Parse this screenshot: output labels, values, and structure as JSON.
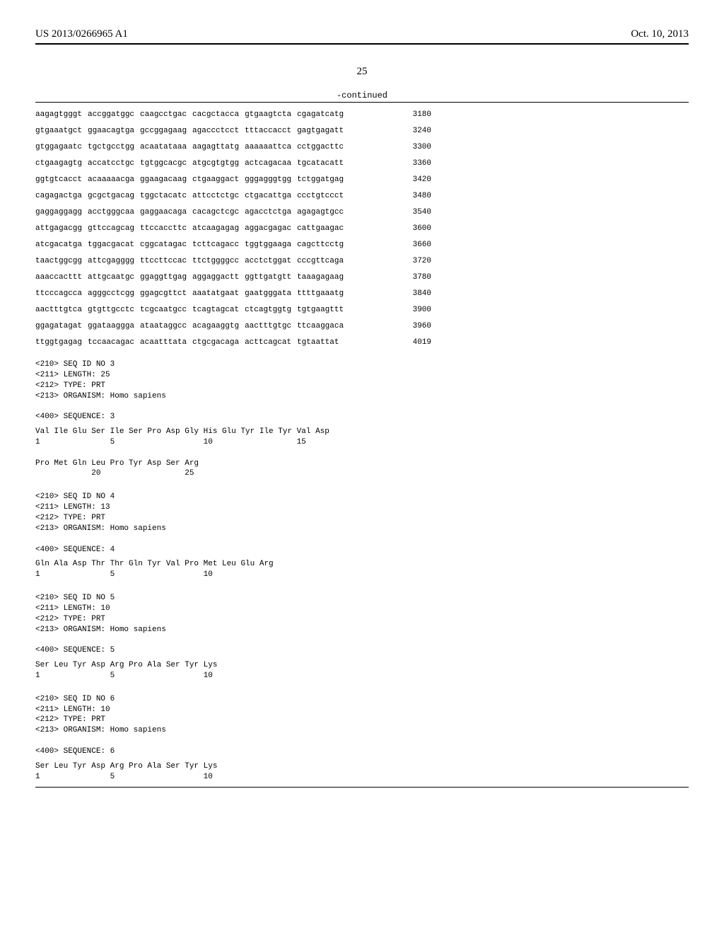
{
  "header": {
    "doc_number": "US 2013/0266965 A1",
    "date": "Oct. 10, 2013",
    "page_number": "25",
    "continued": "-continued"
  },
  "dna_rows": [
    {
      "groups": [
        "aagagtgggt",
        "accggatggc",
        "caagcctgac",
        "cacgctacca",
        "gtgaagtcta",
        "cgagatcatg"
      ],
      "pos": "3180"
    },
    {
      "groups": [
        "gtgaaatgct",
        "ggaacagtga",
        "gccggagaag",
        "agaccctcct",
        "tttaccacct",
        "gagtgagatt"
      ],
      "pos": "3240"
    },
    {
      "groups": [
        "gtggagaatc",
        "tgctgcctgg",
        "acaatataaa",
        "aagagttatg",
        "aaaaaattca",
        "cctggacttc"
      ],
      "pos": "3300"
    },
    {
      "groups": [
        "ctgaagagtg",
        "accatcctgc",
        "tgtggcacgc",
        "atgcgtgtgg",
        "actcagacaa",
        "tgcatacatt"
      ],
      "pos": "3360"
    },
    {
      "groups": [
        "ggtgtcacct",
        "acaaaaacga",
        "ggaagacaag",
        "ctgaaggact",
        "gggagggtgg",
        "tctggatgag"
      ],
      "pos": "3420"
    },
    {
      "groups": [
        "cagagactga",
        "gcgctgacag",
        "tggctacatc",
        "attcctctgc",
        "ctgacattga",
        "ccctgtccct"
      ],
      "pos": "3480"
    },
    {
      "groups": [
        "gaggaggagg",
        "acctgggcaa",
        "gaggaacaga",
        "cacagctcgc",
        "agacctctga",
        "agagagtgcc"
      ],
      "pos": "3540"
    },
    {
      "groups": [
        "attgagacgg",
        "gttccagcag",
        "ttccaccttc",
        "atcaagagag",
        "aggacgagac",
        "cattgaagac"
      ],
      "pos": "3600"
    },
    {
      "groups": [
        "atcgacatga",
        "tggacgacat",
        "cggcatagac",
        "tcttcagacc",
        "tggtggaaga",
        "cagcttcctg"
      ],
      "pos": "3660"
    },
    {
      "groups": [
        "taactggcgg",
        "attcgagggg",
        "ttccttccac",
        "ttctggggcc",
        "acctctggat",
        "cccgttcaga"
      ],
      "pos": "3720"
    },
    {
      "groups": [
        "aaaccacttt",
        "attgcaatgc",
        "ggaggttgag",
        "aggaggactt",
        "ggttgatgtt",
        "taaagagaag"
      ],
      "pos": "3780"
    },
    {
      "groups": [
        "ttcccagcca",
        "agggcctcgg",
        "ggagcgttct",
        "aaatatgaat",
        "gaatgggata",
        "ttttgaaatg"
      ],
      "pos": "3840"
    },
    {
      "groups": [
        "aactttgtca",
        "gtgttgcctc",
        "tcgcaatgcc",
        "tcagtagcat",
        "ctcagtggtg",
        "tgtgaagttt"
      ],
      "pos": "3900"
    },
    {
      "groups": [
        "ggagatagat",
        "ggataaggga",
        "ataataggcc",
        "acagaaggtg",
        "aactttgtgc",
        "ttcaaggaca"
      ],
      "pos": "3960"
    },
    {
      "groups": [
        "ttggtgagag",
        "tccaacagac",
        "acaatttata",
        "ctgcgacaga",
        "acttcagcat",
        "tgtaattat"
      ],
      "pos": "4019"
    }
  ],
  "sequences": [
    {
      "meta": "<210> SEQ ID NO 3\n<211> LENGTH: 25\n<212> TYPE: PRT\n<213> ORGANISM: Homo sapiens\n\n<400> SEQUENCE: 3",
      "protein": "Val Ile Glu Ser Ile Ser Pro Asp Gly His Glu Tyr Ile Tyr Val Asp\n1               5                   10                  15\n\nPro Met Gln Leu Pro Tyr Asp Ser Arg\n            20                  25"
    },
    {
      "meta": "<210> SEQ ID NO 4\n<211> LENGTH: 13\n<212> TYPE: PRT\n<213> ORGANISM: Homo sapiens\n\n<400> SEQUENCE: 4",
      "protein": "Gln Ala Asp Thr Thr Gln Tyr Val Pro Met Leu Glu Arg\n1               5                   10"
    },
    {
      "meta": "<210> SEQ ID NO 5\n<211> LENGTH: 10\n<212> TYPE: PRT\n<213> ORGANISM: Homo sapiens\n\n<400> SEQUENCE: 5",
      "protein": "Ser Leu Tyr Asp Arg Pro Ala Ser Tyr Lys\n1               5                   10"
    },
    {
      "meta": "<210> SEQ ID NO 6\n<211> LENGTH: 10\n<212> TYPE: PRT\n<213> ORGANISM: Homo sapiens\n\n<400> SEQUENCE: 6",
      "protein": "Ser Leu Tyr Asp Arg Pro Ala Ser Tyr Lys\n1               5                   10"
    }
  ]
}
